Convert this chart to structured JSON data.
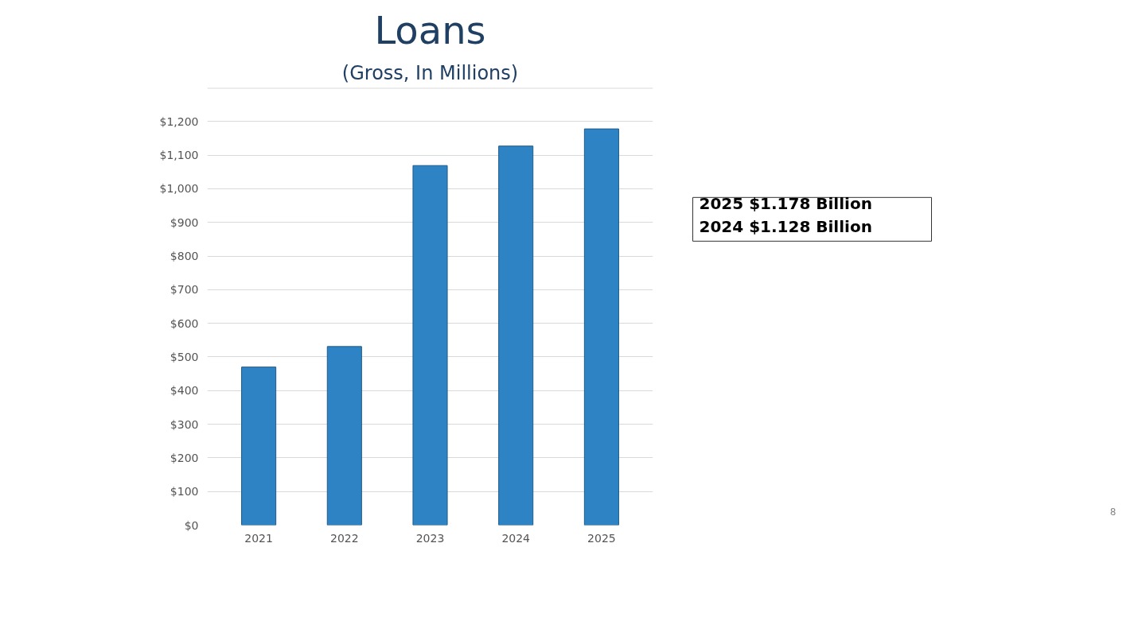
{
  "chart_data": {
    "type": "bar",
    "title": "Loans",
    "subtitle": "(Gross, In Millions)",
    "categories": [
      "2021",
      "2022",
      "2023",
      "2024",
      "2025"
    ],
    "values": [
      470,
      531,
      1069,
      1127,
      1178
    ],
    "color": "#2e83c4",
    "ylim": [
      0,
      1300
    ],
    "yticks": [
      {
        "value": 0,
        "label": "$0"
      },
      {
        "value": 100,
        "label": "$100"
      },
      {
        "value": 200,
        "label": "$200"
      },
      {
        "value": 300,
        "label": "$300"
      },
      {
        "value": 400,
        "label": "$400"
      },
      {
        "value": 500,
        "label": "$500"
      },
      {
        "value": 600,
        "label": "$600"
      },
      {
        "value": 700,
        "label": "$700"
      },
      {
        "value": 800,
        "label": "$800"
      },
      {
        "value": 900,
        "label": "$900"
      },
      {
        "value": 1000,
        "label": "$1,000"
      },
      {
        "value": 1100,
        "label": "$1,100"
      },
      {
        "value": 1200,
        "label": "$1,200"
      },
      {
        "value": 1300,
        "label": null
      }
    ],
    "grid": "y",
    "annotations": [
      "2025 $1.178 Billion",
      "2024 $1.128 Billion",
      "8"
    ]
  }
}
